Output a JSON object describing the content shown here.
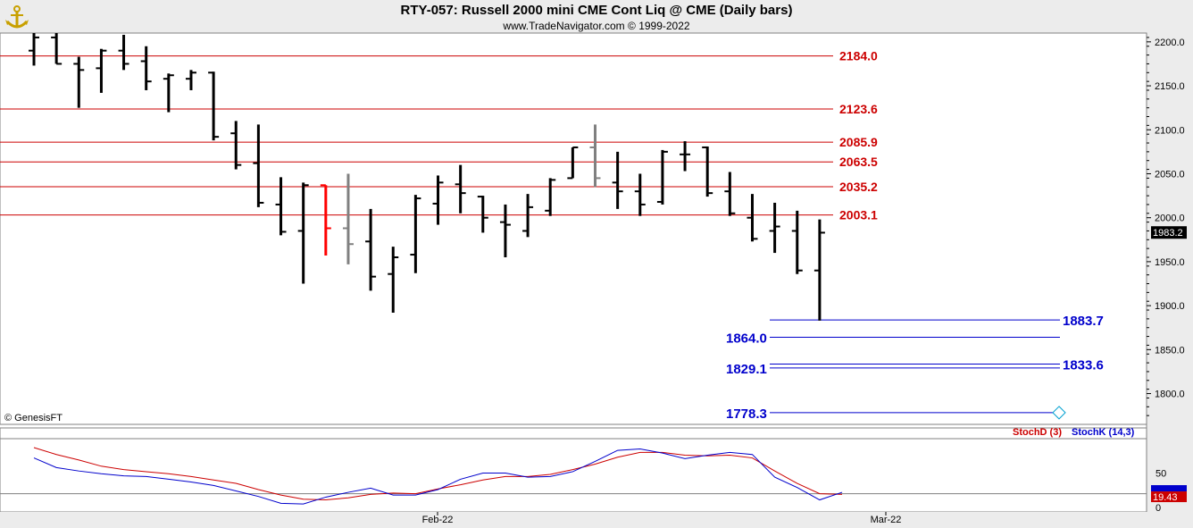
{
  "header": {
    "title": "RTY-057:  Russell 2000 mini CME Cont Liq @ CME  (Daily bars)",
    "subtitle": "www.TradeNavigator.com © 1999-2022"
  },
  "copyright": "© GenesisFT",
  "colors": {
    "resistance": "#cc0000",
    "support": "#0000cc",
    "stochD": "#cc0000",
    "stochK": "#0000cc",
    "axis_bg": "#ececec"
  },
  "chart_data": [
    {
      "type": "ohlc",
      "title": "RTY-057:  Russell 2000 mini CME Cont Liq @ CME  (Daily bars)",
      "ylim": [
        1765,
        2210
      ],
      "y_ticks": [
        "2200.0",
        "2150.0",
        "2100.0",
        "2050.0",
        "2000.0",
        "1950.0",
        "1900.0",
        "1850.0",
        "1800.0"
      ],
      "x_ticks": [
        "Feb-22",
        "Mar-22"
      ],
      "last_price": "1983.2",
      "bars": [
        {
          "o": 2190,
          "h": 2210,
          "l": 2173,
          "c": 2205
        },
        {
          "o": 2205,
          "h": 2210,
          "l": 2175,
          "c": 2175
        },
        {
          "o": 2175,
          "h": 2183,
          "l": 2125,
          "c": 2168
        },
        {
          "o": 2170,
          "h": 2192,
          "l": 2142,
          "c": 2190
        },
        {
          "o": 2190,
          "h": 2208,
          "l": 2168,
          "c": 2175
        },
        {
          "o": 2178,
          "h": 2195,
          "l": 2145,
          "c": 2155
        },
        {
          "o": 2158,
          "h": 2164,
          "l": 2120,
          "c": 2162
        },
        {
          "o": 2158,
          "h": 2168,
          "l": 2145,
          "c": 2165
        },
        {
          "o": 2165,
          "h": 2166,
          "l": 2088,
          "c": 2092
        },
        {
          "o": 2096,
          "h": 2110,
          "l": 2055,
          "c": 2060
        },
        {
          "o": 2062,
          "h": 2106,
          "l": 2012,
          "c": 2017
        },
        {
          "o": 2015,
          "h": 2046,
          "l": 1980,
          "c": 1984
        },
        {
          "o": 1985,
          "h": 2040,
          "l": 1925,
          "c": 2037,
          "color": "black"
        },
        {
          "o": 2037,
          "h": 2037,
          "l": 1957,
          "c": 1988,
          "color": "red"
        },
        {
          "o": 1988,
          "h": 2050,
          "l": 1947,
          "c": 1970,
          "color": "gray"
        },
        {
          "o": 1973,
          "h": 2010,
          "l": 1917,
          "c": 1933
        },
        {
          "o": 1936,
          "h": 1967,
          "l": 1892,
          "c": 1955
        },
        {
          "o": 1958,
          "h": 2026,
          "l": 1937,
          "c": 2022
        },
        {
          "o": 2016,
          "h": 2048,
          "l": 1992,
          "c": 2040
        },
        {
          "o": 2038,
          "h": 2060,
          "l": 2005,
          "c": 2028
        },
        {
          "o": 2024,
          "h": 2025,
          "l": 1983,
          "c": 2000
        },
        {
          "o": 1995,
          "h": 2015,
          "l": 1955,
          "c": 1992
        },
        {
          "o": 1985,
          "h": 2027,
          "l": 1978,
          "c": 2012
        },
        {
          "o": 2008,
          "h": 2045,
          "l": 2002,
          "c": 2043
        },
        {
          "o": 2045,
          "h": 2080,
          "l": 2045,
          "c": 2080
        },
        {
          "o": 2080,
          "h": 2106,
          "l": 2035,
          "c": 2045,
          "color": "gray"
        },
        {
          "o": 2040,
          "h": 2075,
          "l": 2010,
          "c": 2030
        },
        {
          "o": 2030,
          "h": 2050,
          "l": 2002,
          "c": 2015
        },
        {
          "o": 2018,
          "h": 2077,
          "l": 2015,
          "c": 2075
        },
        {
          "o": 2072,
          "h": 2087,
          "l": 2053,
          "c": 2072
        },
        {
          "o": 2080,
          "h": 2081,
          "l": 2024,
          "c": 2028
        },
        {
          "o": 2030,
          "h": 2052,
          "l": 2002,
          "c": 2005
        },
        {
          "o": 2000,
          "h": 2027,
          "l": 1973,
          "c": 1976
        },
        {
          "o": 1985,
          "h": 2017,
          "l": 1960,
          "c": 1990
        },
        {
          "o": 1985,
          "h": 2008,
          "l": 1936,
          "c": 1940
        },
        {
          "o": 1940,
          "h": 1998,
          "l": 1883,
          "c": 1983
        }
      ]
    },
    {
      "type": "horizontal-levels",
      "resistance": [
        2184.0,
        2123.6,
        2085.9,
        2063.5,
        2035.2,
        2003.1
      ],
      "resistance_labels": [
        "2184.0",
        "2123.6",
        "2085.9",
        "2063.5",
        "2035.2",
        "2003.1"
      ],
      "support": [
        1883.7,
        1864.0,
        1833.6,
        1829.1,
        1778.3
      ],
      "support_labels": [
        "1883.7",
        "1864.0",
        "1833.6",
        "1829.1",
        "1778.3"
      ]
    },
    {
      "type": "line",
      "ylim": [
        0,
        100
      ],
      "y_ticks": [
        "50",
        "0"
      ],
      "last_value": "19.43",
      "series": [
        {
          "name": "StochD (3)",
          "values": [
            87,
            77,
            69,
            60,
            55,
            52,
            49,
            45,
            40,
            35,
            26,
            18,
            12,
            11,
            14,
            19,
            21,
            20,
            27,
            33,
            40,
            45,
            45,
            48,
            55,
            63,
            73,
            80,
            80,
            76,
            75,
            76,
            72,
            53,
            35,
            20,
            19
          ]
        },
        {
          "name": "StochK (14,3)",
          "values": [
            72,
            58,
            53,
            49,
            46,
            45,
            41,
            37,
            32,
            24,
            16,
            6,
            5,
            15,
            22,
            28,
            18,
            18,
            26,
            41,
            50,
            50,
            44,
            45,
            52,
            67,
            83,
            85,
            79,
            71,
            76,
            80,
            77,
            44,
            29,
            11,
            22
          ]
        }
      ]
    }
  ]
}
